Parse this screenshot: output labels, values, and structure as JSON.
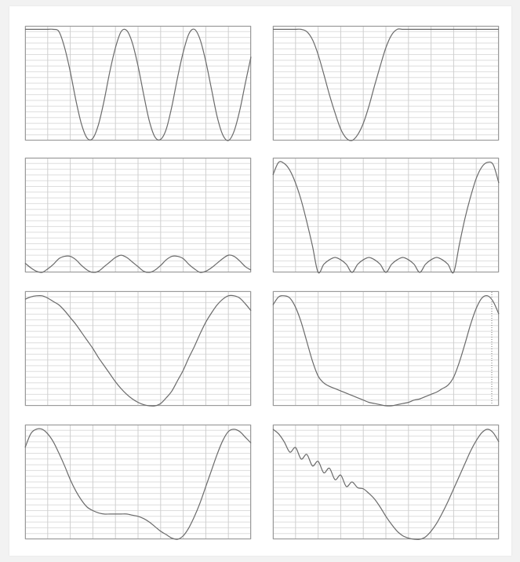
{
  "chart_data": [
    {
      "type": "line",
      "color": "#6a6a6a",
      "grid": true,
      "xlim": [
        0,
        40
      ],
      "ylim": [
        0,
        1
      ],
      "xticks": [
        0,
        4,
        8,
        12,
        16,
        20,
        24,
        28,
        32,
        36,
        40
      ],
      "yticks": [
        0,
        0.05,
        0.1,
        0.15,
        0.2,
        0.25,
        0.3,
        0.35,
        0.4,
        0.45,
        0.5,
        0.55,
        0.6,
        0.65,
        0.7,
        0.75,
        0.8,
        0.85,
        0.9,
        0.95,
        1
      ],
      "x": [
        0,
        1,
        2,
        3,
        4,
        5,
        6,
        7,
        8,
        9,
        10,
        11,
        12,
        13,
        14,
        15,
        16,
        17,
        18,
        19,
        20,
        21,
        22,
        23,
        24,
        25,
        26,
        27,
        28,
        29,
        30,
        31,
        32,
        33,
        34,
        35,
        36,
        37,
        38,
        39,
        40
      ],
      "values": [
        0.97,
        0.97,
        0.97,
        0.97,
        0.97,
        0.97,
        0.95,
        0.81,
        0.6,
        0.35,
        0.14,
        0.02,
        0.02,
        0.14,
        0.35,
        0.6,
        0.81,
        0.95,
        0.96,
        0.85,
        0.65,
        0.4,
        0.17,
        0.03,
        0.01,
        0.1,
        0.3,
        0.55,
        0.77,
        0.93,
        0.97,
        0.88,
        0.69,
        0.45,
        0.21,
        0.05,
        0,
        0.08,
        0.26,
        0.5,
        0.73
      ]
    },
    {
      "type": "line",
      "color": "#6a6a6a",
      "grid": true,
      "xlim": [
        0,
        40
      ],
      "ylim": [
        0,
        1
      ],
      "xticks": [
        0,
        4,
        8,
        12,
        16,
        20,
        24,
        28,
        32,
        36,
        40
      ],
      "yticks": [
        0,
        0.05,
        0.1,
        0.15,
        0.2,
        0.25,
        0.3,
        0.35,
        0.4,
        0.45,
        0.5,
        0.55,
        0.6,
        0.65,
        0.7,
        0.75,
        0.8,
        0.85,
        0.9,
        0.95,
        1
      ],
      "x": [
        0,
        1,
        2,
        3,
        4,
        5,
        6,
        7,
        8,
        9,
        10,
        11,
        12,
        13,
        14,
        15,
        16,
        17,
        18,
        19,
        20,
        21,
        22,
        23,
        24,
        25,
        26,
        27,
        28,
        29,
        30,
        31,
        32,
        33,
        34,
        35,
        36,
        37,
        38,
        39,
        40
      ],
      "values": [
        0.97,
        0.97,
        0.97,
        0.97,
        0.97,
        0.97,
        0.95,
        0.88,
        0.75,
        0.58,
        0.4,
        0.24,
        0.1,
        0.02,
        0,
        0.05,
        0.15,
        0.3,
        0.48,
        0.65,
        0.81,
        0.92,
        0.97,
        0.97,
        0.97,
        0.97,
        0.97,
        0.97,
        0.97,
        0.97,
        0.97,
        0.97,
        0.97,
        0.97,
        0.97,
        0.97,
        0.97,
        0.97,
        0.97,
        0.97,
        0.97
      ]
    },
    {
      "type": "line",
      "color": "#6a6a6a",
      "grid": true,
      "xlim": [
        0,
        40
      ],
      "ylim": [
        0,
        1
      ],
      "xticks": [
        0,
        4,
        8,
        12,
        16,
        20,
        24,
        28,
        32,
        36,
        40
      ],
      "yticks": [
        0,
        0.05,
        0.1,
        0.15,
        0.2,
        0.25,
        0.3,
        0.35,
        0.4,
        0.45,
        0.5,
        0.55,
        0.6,
        0.65,
        0.7,
        0.75,
        0.8,
        0.85,
        0.9,
        0.95,
        1
      ],
      "x": [
        0,
        1,
        2,
        3,
        4,
        5,
        6,
        7,
        8,
        9,
        10,
        11,
        12,
        13,
        14,
        15,
        16,
        17,
        18,
        19,
        20,
        21,
        22,
        23,
        24,
        25,
        26,
        27,
        28,
        29,
        30,
        31,
        32,
        33,
        34,
        35,
        36,
        37,
        38,
        39,
        40
      ],
      "values": [
        0.08,
        0.04,
        0.01,
        0,
        0.03,
        0.07,
        0.12,
        0.14,
        0.14,
        0.11,
        0.06,
        0.02,
        0,
        0.01,
        0.05,
        0.09,
        0.13,
        0.15,
        0.13,
        0.09,
        0.05,
        0.01,
        0,
        0.02,
        0.06,
        0.11,
        0.14,
        0.14,
        0.12,
        0.07,
        0.03,
        0,
        0.01,
        0.04,
        0.08,
        0.12,
        0.15,
        0.14,
        0.1,
        0.05,
        0.02
      ]
    },
    {
      "type": "line",
      "color": "#6a6a6a",
      "grid": true,
      "xlim": [
        0,
        40
      ],
      "ylim": [
        0,
        1
      ],
      "xticks": [
        0,
        4,
        8,
        12,
        16,
        20,
        24,
        28,
        32,
        36,
        40
      ],
      "yticks": [
        0,
        0.05,
        0.1,
        0.15,
        0.2,
        0.25,
        0.3,
        0.35,
        0.4,
        0.45,
        0.5,
        0.55,
        0.6,
        0.65,
        0.7,
        0.75,
        0.8,
        0.85,
        0.9,
        0.95,
        1
      ],
      "x": [
        0,
        1,
        2,
        3,
        4,
        5,
        6,
        7,
        8,
        9,
        10,
        11,
        12,
        13,
        14,
        15,
        16,
        17,
        18,
        19,
        20,
        21,
        22,
        23,
        24,
        25,
        26,
        27,
        28,
        29,
        30,
        31,
        32,
        33,
        34,
        35,
        36,
        37,
        38,
        39,
        40
      ],
      "values": [
        0.85,
        0.96,
        0.95,
        0.89,
        0.78,
        0.63,
        0.44,
        0.23,
        0,
        0.07,
        0.11,
        0.13,
        0.11,
        0.07,
        0,
        0.07,
        0.11,
        0.13,
        0.11,
        0.07,
        0,
        0.07,
        0.11,
        0.13,
        0.11,
        0.07,
        0,
        0.07,
        0.11,
        0.13,
        0.11,
        0.07,
        0,
        0.24,
        0.47,
        0.66,
        0.82,
        0.92,
        0.96,
        0.94,
        0.78
      ]
    },
    {
      "type": "line",
      "color": "#6a6a6a",
      "grid": true,
      "xlim": [
        0,
        40
      ],
      "ylim": [
        0,
        1
      ],
      "xticks": [
        0,
        4,
        8,
        12,
        16,
        20,
        24,
        28,
        32,
        36,
        40
      ],
      "yticks": [
        0,
        0.05,
        0.1,
        0.15,
        0.2,
        0.25,
        0.3,
        0.35,
        0.4,
        0.45,
        0.5,
        0.55,
        0.6,
        0.65,
        0.7,
        0.75,
        0.8,
        0.85,
        0.9,
        0.95,
        1
      ],
      "x": [
        0,
        1,
        2,
        3,
        4,
        5,
        6,
        7,
        8,
        9,
        10,
        11,
        12,
        13,
        14,
        15,
        16,
        17,
        18,
        19,
        20,
        21,
        22,
        23,
        24,
        25,
        26,
        27,
        28,
        29,
        30,
        31,
        32,
        33,
        34,
        35,
        36,
        37,
        38,
        39,
        40
      ],
      "values": [
        0.93,
        0.95,
        0.96,
        0.96,
        0.94,
        0.91,
        0.88,
        0.83,
        0.77,
        0.71,
        0.64,
        0.57,
        0.5,
        0.42,
        0.35,
        0.28,
        0.21,
        0.15,
        0.1,
        0.06,
        0.03,
        0.01,
        0,
        0,
        0.02,
        0.07,
        0.13,
        0.22,
        0.31,
        0.42,
        0.52,
        0.63,
        0.73,
        0.81,
        0.88,
        0.93,
        0.96,
        0.96,
        0.94,
        0.89,
        0.83
      ]
    },
    {
      "type": "line",
      "color": "#6a6a6a",
      "grid": true,
      "xlim": [
        0,
        40
      ],
      "ylim": [
        0,
        1
      ],
      "xticks": [
        0,
        4,
        8,
        12,
        16,
        20,
        24,
        28,
        32,
        36,
        40
      ],
      "yticks": [
        0,
        0.05,
        0.1,
        0.15,
        0.2,
        0.25,
        0.3,
        0.35,
        0.4,
        0.45,
        0.5,
        0.55,
        0.6,
        0.65,
        0.7,
        0.75,
        0.8,
        0.85,
        0.9,
        0.95,
        1
      ],
      "x": [
        0,
        1,
        2,
        3,
        4,
        5,
        6,
        7,
        8,
        9,
        10,
        11,
        12,
        13,
        14,
        15,
        16,
        17,
        18,
        19,
        20,
        21,
        22,
        23,
        24,
        25,
        26,
        27,
        28,
        29,
        30,
        31,
        32,
        33,
        34,
        35,
        36,
        37,
        38,
        39,
        40
      ],
      "values": [
        0.88,
        0.95,
        0.96,
        0.94,
        0.86,
        0.73,
        0.56,
        0.39,
        0.26,
        0.2,
        0.17,
        0.15,
        0.13,
        0.11,
        0.09,
        0.07,
        0.05,
        0.03,
        0.02,
        0.01,
        0,
        0,
        0.01,
        0.02,
        0.03,
        0.05,
        0.06,
        0.08,
        0.1,
        0.12,
        0.15,
        0.18,
        0.25,
        0.38,
        0.54,
        0.71,
        0.85,
        0.94,
        0.96,
        0.91,
        0.8
      ]
    },
    {
      "type": "line",
      "color": "#6a6a6a",
      "grid": true,
      "xlim": [
        0,
        40
      ],
      "ylim": [
        0,
        1
      ],
      "xticks": [
        0,
        4,
        8,
        12,
        16,
        20,
        24,
        28,
        32,
        36,
        40
      ],
      "yticks": [
        0,
        0.05,
        0.1,
        0.15,
        0.2,
        0.25,
        0.3,
        0.35,
        0.4,
        0.45,
        0.5,
        0.55,
        0.6,
        0.65,
        0.7,
        0.75,
        0.8,
        0.85,
        0.9,
        0.95,
        1
      ],
      "x": [
        0,
        1,
        2,
        3,
        4,
        5,
        6,
        7,
        8,
        9,
        10,
        11,
        12,
        13,
        14,
        15,
        16,
        17,
        18,
        19,
        20,
        21,
        22,
        23,
        24,
        25,
        26,
        27,
        28,
        29,
        30,
        31,
        32,
        33,
        34,
        35,
        36,
        37,
        38,
        39,
        40
      ],
      "values": [
        0.8,
        0.92,
        0.96,
        0.96,
        0.92,
        0.85,
        0.75,
        0.64,
        0.52,
        0.42,
        0.34,
        0.28,
        0.25,
        0.23,
        0.22,
        0.22,
        0.22,
        0.22,
        0.22,
        0.21,
        0.2,
        0.18,
        0.15,
        0.11,
        0.07,
        0.04,
        0.01,
        0,
        0.03,
        0.1,
        0.2,
        0.32,
        0.46,
        0.6,
        0.74,
        0.86,
        0.94,
        0.96,
        0.94,
        0.89,
        0.84
      ]
    },
    {
      "type": "line",
      "color": "#6a6a6a",
      "grid": true,
      "xlim": [
        0,
        40
      ],
      "ylim": [
        0,
        1
      ],
      "xticks": [
        0,
        4,
        8,
        12,
        16,
        20,
        24,
        28,
        32,
        36,
        40
      ],
      "yticks": [
        0,
        0.05,
        0.1,
        0.15,
        0.2,
        0.25,
        0.3,
        0.35,
        0.4,
        0.45,
        0.5,
        0.55,
        0.6,
        0.65,
        0.7,
        0.75,
        0.8,
        0.85,
        0.9,
        0.95,
        1
      ],
      "x": [
        0,
        1,
        2,
        3,
        4,
        5,
        6,
        7,
        8,
        9,
        10,
        11,
        12,
        13,
        14,
        15,
        16,
        17,
        18,
        19,
        20,
        21,
        22,
        23,
        24,
        25,
        26,
        27,
        28,
        29,
        30,
        31,
        32,
        33,
        34,
        35,
        36,
        37,
        38,
        39,
        40
      ],
      "values": [
        0.96,
        0.92,
        0.85,
        0.76,
        0.8,
        0.7,
        0.74,
        0.64,
        0.68,
        0.58,
        0.62,
        0.52,
        0.56,
        0.46,
        0.5,
        0.45,
        0.44,
        0.4,
        0.35,
        0.28,
        0.2,
        0.13,
        0.07,
        0.03,
        0.01,
        0,
        0,
        0.02,
        0.07,
        0.14,
        0.23,
        0.33,
        0.44,
        0.55,
        0.66,
        0.77,
        0.86,
        0.93,
        0.96,
        0.93,
        0.85
      ]
    }
  ]
}
